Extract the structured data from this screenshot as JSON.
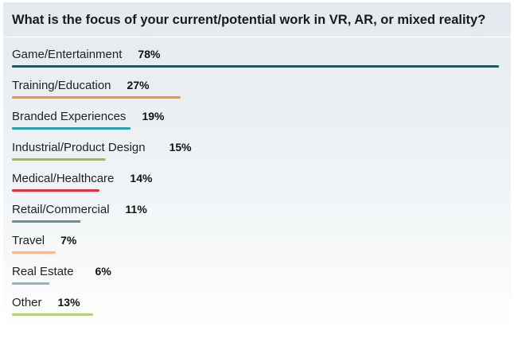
{
  "chart_data": {
    "type": "bar",
    "orientation": "horizontal",
    "title": "What is the focus of your current/potential work in VR, AR, or mixed reality?",
    "unit": "%",
    "xlim": [
      0,
      78
    ],
    "grid": false,
    "categories": [
      "Game/Entertainment",
      "Training/Education",
      "Branded Experiences",
      "Industrial/Product Design",
      "Medical/Healthcare",
      "Retail/Commercial",
      "Travel",
      "Real Estate",
      "Other"
    ],
    "values": [
      78,
      27,
      19,
      15,
      14,
      11,
      7,
      6,
      13
    ],
    "value_labels": [
      "78%",
      "27%",
      "19%",
      "15%",
      "14%",
      "11%",
      "7%",
      "6%",
      "13%"
    ],
    "colors": [
      "#1e5a5a",
      "#f0913a",
      "#2aa2ae",
      "#9bbf4a",
      "#e0333f",
      "#6e8e8c",
      "#f7b98c",
      "#8fb6c2",
      "#b4d27a"
    ]
  }
}
